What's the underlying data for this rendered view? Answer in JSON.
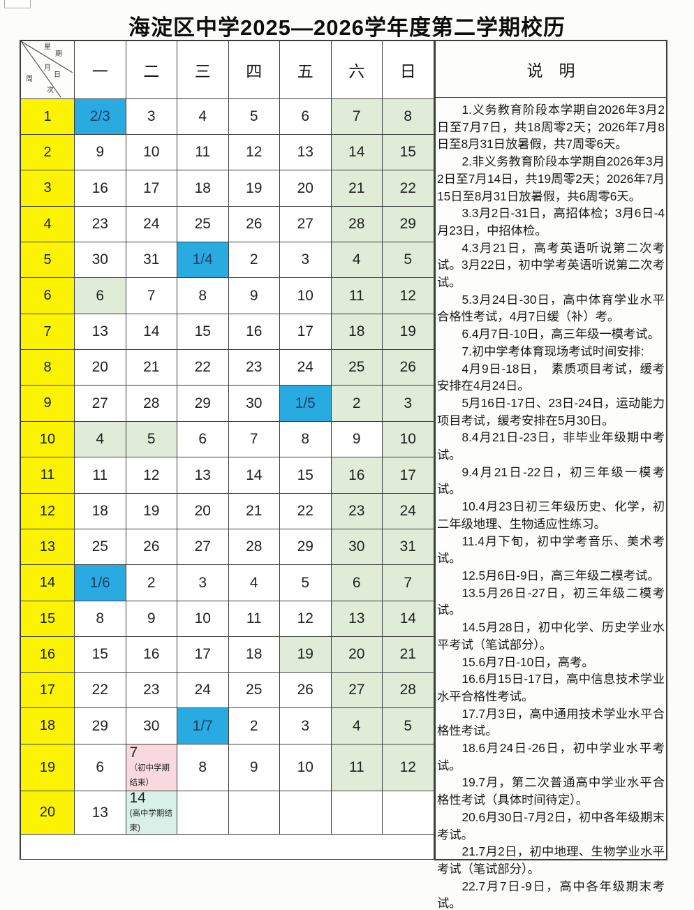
{
  "title": "海淀区中学2025—2026学年度第二学期校历",
  "corner": {
    "top": "星期",
    "middle": "月日",
    "bottom": "周次"
  },
  "day_headers": [
    "一",
    "二",
    "三",
    "四",
    "五",
    "六",
    "日"
  ],
  "colors": {
    "week_column": "#fbf301",
    "month_start": "#29abe2",
    "weekend_holiday": "#e0ecd8",
    "junior_term_end": "#f8d9df",
    "senior_term_end": "#d8f0e7"
  },
  "weeks": [
    {
      "week": "1",
      "days": [
        {
          "t": "2/3",
          "bg": "blue"
        },
        {
          "t": "3"
        },
        {
          "t": "4"
        },
        {
          "t": "5"
        },
        {
          "t": "6"
        },
        {
          "t": "7",
          "bg": "green"
        },
        {
          "t": "8",
          "bg": "green"
        }
      ]
    },
    {
      "week": "2",
      "days": [
        {
          "t": "9"
        },
        {
          "t": "10"
        },
        {
          "t": "11"
        },
        {
          "t": "12"
        },
        {
          "t": "13"
        },
        {
          "t": "14",
          "bg": "green"
        },
        {
          "t": "15",
          "bg": "green"
        }
      ]
    },
    {
      "week": "3",
      "days": [
        {
          "t": "16"
        },
        {
          "t": "17"
        },
        {
          "t": "18"
        },
        {
          "t": "19"
        },
        {
          "t": "20"
        },
        {
          "t": "21",
          "bg": "green"
        },
        {
          "t": "22",
          "bg": "green"
        }
      ]
    },
    {
      "week": "4",
      "days": [
        {
          "t": "23"
        },
        {
          "t": "24"
        },
        {
          "t": "25"
        },
        {
          "t": "26"
        },
        {
          "t": "27"
        },
        {
          "t": "28",
          "bg": "green"
        },
        {
          "t": "29",
          "bg": "green"
        }
      ]
    },
    {
      "week": "5",
      "days": [
        {
          "t": "30"
        },
        {
          "t": "31"
        },
        {
          "t": "1/4",
          "bg": "blue"
        },
        {
          "t": "2"
        },
        {
          "t": "3"
        },
        {
          "t": "4",
          "bg": "green"
        },
        {
          "t": "5",
          "bg": "green"
        }
      ]
    },
    {
      "week": "6",
      "days": [
        {
          "t": "6",
          "bg": "green"
        },
        {
          "t": "7"
        },
        {
          "t": "8"
        },
        {
          "t": "9"
        },
        {
          "t": "10"
        },
        {
          "t": "11",
          "bg": "green"
        },
        {
          "t": "12",
          "bg": "green"
        }
      ]
    },
    {
      "week": "7",
      "days": [
        {
          "t": "13"
        },
        {
          "t": "14"
        },
        {
          "t": "15"
        },
        {
          "t": "16"
        },
        {
          "t": "17"
        },
        {
          "t": "18",
          "bg": "green"
        },
        {
          "t": "19",
          "bg": "green"
        }
      ]
    },
    {
      "week": "8",
      "days": [
        {
          "t": "20"
        },
        {
          "t": "21"
        },
        {
          "t": "22"
        },
        {
          "t": "23"
        },
        {
          "t": "24"
        },
        {
          "t": "25",
          "bg": "green"
        },
        {
          "t": "26",
          "bg": "green"
        }
      ]
    },
    {
      "week": "9",
      "days": [
        {
          "t": "27"
        },
        {
          "t": "28"
        },
        {
          "t": "29"
        },
        {
          "t": "30"
        },
        {
          "t": "1/5",
          "bg": "blue"
        },
        {
          "t": "2",
          "bg": "green"
        },
        {
          "t": "3",
          "bg": "green"
        }
      ]
    },
    {
      "week": "10",
      "days": [
        {
          "t": "4",
          "bg": "green"
        },
        {
          "t": "5",
          "bg": "green"
        },
        {
          "t": "6"
        },
        {
          "t": "7"
        },
        {
          "t": "8"
        },
        {
          "t": "9"
        },
        {
          "t": "10",
          "bg": "green"
        }
      ]
    },
    {
      "week": "11",
      "days": [
        {
          "t": "11"
        },
        {
          "t": "12"
        },
        {
          "t": "13"
        },
        {
          "t": "14"
        },
        {
          "t": "15"
        },
        {
          "t": "16",
          "bg": "green"
        },
        {
          "t": "17",
          "bg": "green"
        }
      ]
    },
    {
      "week": "12",
      "days": [
        {
          "t": "18"
        },
        {
          "t": "19"
        },
        {
          "t": "20"
        },
        {
          "t": "21"
        },
        {
          "t": "22"
        },
        {
          "t": "23",
          "bg": "green"
        },
        {
          "t": "24",
          "bg": "green"
        }
      ]
    },
    {
      "week": "13",
      "days": [
        {
          "t": "25"
        },
        {
          "t": "26"
        },
        {
          "t": "27"
        },
        {
          "t": "28"
        },
        {
          "t": "29"
        },
        {
          "t": "30",
          "bg": "green"
        },
        {
          "t": "31",
          "bg": "green"
        }
      ]
    },
    {
      "week": "14",
      "days": [
        {
          "t": "1/6",
          "bg": "blue"
        },
        {
          "t": "2"
        },
        {
          "t": "3"
        },
        {
          "t": "4"
        },
        {
          "t": "5"
        },
        {
          "t": "6",
          "bg": "green"
        },
        {
          "t": "7",
          "bg": "green"
        }
      ]
    },
    {
      "week": "15",
      "days": [
        {
          "t": "8"
        },
        {
          "t": "9"
        },
        {
          "t": "10"
        },
        {
          "t": "11"
        },
        {
          "t": "12"
        },
        {
          "t": "13",
          "bg": "green"
        },
        {
          "t": "14",
          "bg": "green"
        }
      ]
    },
    {
      "week": "16",
      "days": [
        {
          "t": "15"
        },
        {
          "t": "16"
        },
        {
          "t": "17"
        },
        {
          "t": "18"
        },
        {
          "t": "19",
          "bg": "green"
        },
        {
          "t": "20",
          "bg": "green"
        },
        {
          "t": "21",
          "bg": "green"
        }
      ]
    },
    {
      "week": "17",
      "days": [
        {
          "t": "22"
        },
        {
          "t": "23"
        },
        {
          "t": "24"
        },
        {
          "t": "25"
        },
        {
          "t": "26"
        },
        {
          "t": "27",
          "bg": "green"
        },
        {
          "t": "28",
          "bg": "green"
        }
      ]
    },
    {
      "week": "18",
      "days": [
        {
          "t": "29"
        },
        {
          "t": "30"
        },
        {
          "t": "1/7",
          "bg": "blue"
        },
        {
          "t": "2"
        },
        {
          "t": "3"
        },
        {
          "t": "4",
          "bg": "green"
        },
        {
          "t": "5",
          "bg": "green"
        }
      ]
    },
    {
      "week": "19",
      "days": [
        {
          "t": "6"
        },
        {
          "t": "7",
          "bg": "pink",
          "note": "（初中学期结束）"
        },
        {
          "t": "8"
        },
        {
          "t": "9"
        },
        {
          "t": "10"
        },
        {
          "t": "11",
          "bg": "green"
        },
        {
          "t": "12",
          "bg": "green"
        }
      ]
    },
    {
      "week": "20",
      "days": [
        {
          "t": "13"
        },
        {
          "t": "14",
          "bg": "mint",
          "note": "(高中学期结束)"
        },
        {
          "t": ""
        },
        {
          "t": ""
        },
        {
          "t": ""
        },
        {
          "t": ""
        },
        {
          "t": ""
        }
      ]
    }
  ],
  "notes": {
    "header": "说　明",
    "items": [
      "1.义务教育阶段本学期自2026年3月2日至7月7日，共18周零2天；2026年7月8日至8月31日放暑假，共7周零6天。",
      "2.非义务教育阶段本学期自2026年3月2日至7月14日，共19周零2天；2026年7月15日至8月31日放暑假，共6周零6天。",
      "3.3月2日-31日，高招体检；3月6日-4月23日，中招体检。",
      "4.3月21日，高考英语听说第二次考试。3月22日，初中学考英语听说第二次考试。",
      "5.3月24日-30日，高中体育学业水平合格性考试，4月7日缓（补）考。",
      "6.4月7日-10日，高三年级一模考试。",
      "7.初中学考体育现场考试时间安排:",
      "4月9日-18日，　素质项目考试，缓考安排在4月24日。",
      "5月16日-17日、23日-24日，运动能力项目考试，缓考安排在5月30日。",
      "8.4月21日-23日，非毕业年级期中考试。",
      "9.4月21日-22日，初三年级一模考试。",
      "10.4月23日初三年级历史、化学，初二年级地理、生物适应性练习。",
      "11.4月下旬，初中学考音乐、美术考试。",
      "12.5月6日-9日，高三年级二模考试。",
      "13.5月26日-27日，初三年级二模考试。",
      "14.5月28日，初中化学、历史学业水平考试（笔试部分）。",
      "15.6月7日-10日，高考。",
      "16.6月15日-17日，高中信息技术学业水平合格性考试。",
      "17.7月3日，高中通用技术学业水平合格性考试。",
      "18.6月24日-26日，初中学业水平考试。",
      "19.7月，第二次普通高中学业水平合格性考试（具体时间待定）。",
      "20.6月30日-7月2日，初中各年级期末考试。",
      "21.7月2日，初中地理、生物学业水平考试（笔试部分）。",
      "22.7月7日-9日，高中各年级期末考试。"
    ]
  }
}
